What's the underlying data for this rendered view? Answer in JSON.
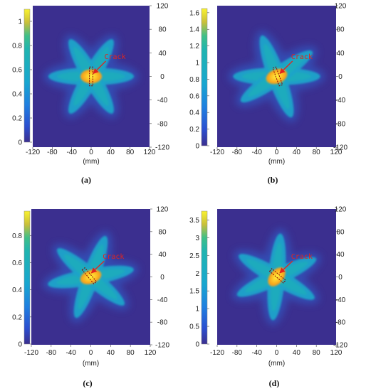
{
  "colors": {
    "background_low": "#3b2f8f",
    "mid": "#23a8c8",
    "high": "#f5c21b",
    "peak": "#fff23a",
    "crack_marker": "#e0241f",
    "crack_dash": "#8b0000"
  },
  "chart_data": [
    {
      "type": "heatmap",
      "panel_label": "(a)",
      "annotation": "Crack",
      "xlabel": "(mm)",
      "x_ticks": [
        "-120",
        "-80",
        "-40",
        "0",
        "40",
        "80",
        "120"
      ],
      "y_ticks": [
        "120",
        "80",
        "40",
        "0",
        "-40",
        "-80",
        "-120"
      ],
      "colorbar_ticks": [
        "1",
        "0.8",
        "0.6",
        "0.4",
        "0.2",
        "0"
      ],
      "colorbar_range": [
        0,
        1.1
      ],
      "xlim": [
        -120,
        120
      ],
      "ylim": [
        -120,
        120
      ],
      "pattern": {
        "lobe_angles_deg": [
          0,
          60,
          120
        ],
        "center_ellipse_angle_deg": 0,
        "crack": {
          "x": 0,
          "y": 0,
          "angle_deg": 90,
          "length": 32,
          "width": 7
        }
      }
    },
    {
      "type": "heatmap",
      "panel_label": "(b)",
      "annotation": "Crack",
      "xlabel": "(mm)",
      "x_ticks": [
        "-120",
        "-80",
        "-40",
        "0",
        "40",
        "80",
        "120"
      ],
      "y_ticks": [
        "120",
        "80",
        "40",
        "0",
        "-40",
        "-80",
        "-120"
      ],
      "colorbar_ticks": [
        "1.6",
        "1.4",
        "1.2",
        "1",
        "0.8",
        "0.6",
        "0.4",
        "0.2",
        "0"
      ],
      "colorbar_range": [
        0,
        1.65
      ],
      "xlim": [
        -120,
        120
      ],
      "ylim": [
        -120,
        120
      ],
      "pattern": {
        "lobe_angles_deg": [
          0,
          35,
          110
        ],
        "center_ellipse_angle_deg": 20,
        "crack": {
          "x": 2,
          "y": 0,
          "angle_deg": 110,
          "length": 32,
          "width": 7
        }
      }
    },
    {
      "type": "heatmap",
      "panel_label": "(c)",
      "annotation": "Crack",
      "xlabel": "(mm)",
      "x_ticks": [
        "-120",
        "-80",
        "-40",
        "0",
        "40",
        "80",
        "120"
      ],
      "y_ticks": [
        "120",
        "80",
        "40",
        "0",
        "-40",
        "-80",
        "-120"
      ],
      "colorbar_ticks": [
        "0.8",
        "0.6",
        "0.4",
        "0.2",
        "0"
      ],
      "colorbar_range": [
        0,
        0.98
      ],
      "xlim": [
        -120,
        120
      ],
      "ylim": [
        -120,
        120
      ],
      "pattern": {
        "lobe_angles_deg": [
          10,
          70,
          140
        ],
        "center_ellipse_angle_deg": 20,
        "crack": {
          "x": -3,
          "y": 2,
          "angle_deg": 130,
          "length": 32,
          "width": 7
        }
      }
    },
    {
      "type": "heatmap",
      "panel_label": "(d)",
      "annotation": "Crack",
      "xlabel": "(mm)",
      "x_ticks": [
        "-120",
        "-80",
        "-40",
        "0",
        "40",
        "80",
        "120"
      ],
      "y_ticks": [
        "120",
        "80",
        "40",
        "0",
        "-40",
        "-80",
        "-120"
      ],
      "colorbar_ticks": [
        "3.5",
        "3",
        "2.5",
        "2",
        "1.5",
        "1",
        "0.5",
        "0"
      ],
      "colorbar_range": [
        0,
        3.75
      ],
      "xlim": [
        -120,
        120
      ],
      "ylim": [
        -120,
        120
      ],
      "pattern": {
        "lobe_angles_deg": [
          25,
          85,
          150
        ],
        "center_ellipse_angle_deg": 50,
        "crack": {
          "x": 2,
          "y": 2,
          "angle_deg": 140,
          "length": 32,
          "width": 7
        }
      }
    }
  ]
}
